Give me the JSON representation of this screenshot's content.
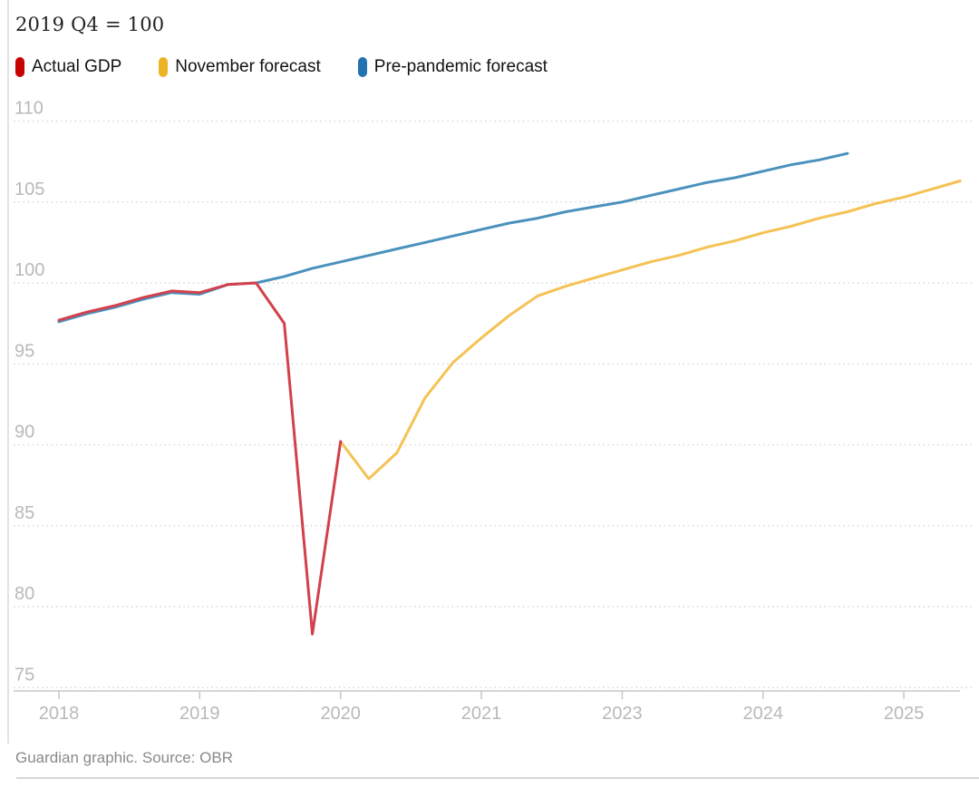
{
  "chart_data": {
    "type": "line",
    "title": "2019 Q4 = 100",
    "x_unit": "quarters since 2018 Q1",
    "ylim": [
      75,
      110
    ],
    "y_ticks": [
      110,
      105,
      100,
      95,
      90,
      85,
      80,
      75
    ],
    "x_ticks": [
      {
        "position_quarter": 0,
        "label": "2018"
      },
      {
        "position_quarter": 5,
        "label": "2019"
      },
      {
        "position_quarter": 10,
        "label": "2020"
      },
      {
        "position_quarter": 15,
        "label": "2021"
      },
      {
        "position_quarter": 20,
        "label": "2023"
      },
      {
        "position_quarter": 25,
        "label": "2024"
      },
      {
        "position_quarter": 30,
        "label": "2025"
      }
    ],
    "grid": "dotted horizontal",
    "legend_position": "top-left",
    "style": {
      "grid_color": "#d9d9d9",
      "axis_color": "#c7c7c7",
      "tick_label_color": "#b9b9b9"
    },
    "series": [
      {
        "name": "Actual GDP",
        "color": "#d2414b",
        "swatch": "#c70000",
        "start_quarter": 0,
        "values": [
          97.7,
          98.2,
          98.6,
          99.1,
          99.5,
          99.4,
          99.9,
          100,
          97.5,
          78.3,
          90.2
        ]
      },
      {
        "name": "November forecast",
        "color": "#f5c254",
        "swatch": "#edb327",
        "start_quarter": 10,
        "values": [
          90.2,
          87.9,
          89.5,
          92.9,
          95.1,
          96.6,
          98,
          99.2,
          99.8,
          100.3,
          100.8,
          101.3,
          101.7,
          102.2,
          102.6,
          103.1,
          103.5,
          104,
          104.4,
          104.9,
          105.3,
          105.8,
          106.3
        ]
      },
      {
        "name": "Pre-pandemic forecast",
        "color": "#4a91bd",
        "swatch": "#2272b2",
        "start_quarter": 0,
        "values": [
          97.6,
          98.1,
          98.5,
          99,
          99.4,
          99.3,
          99.9,
          100,
          100.4,
          100.9,
          101.3,
          101.7,
          102.1,
          102.5,
          102.9,
          103.3,
          103.7,
          104,
          104.4,
          104.7,
          105,
          105.4,
          105.8,
          106.2,
          106.5,
          106.9,
          107.3,
          107.6,
          108
        ]
      }
    ]
  },
  "footer": {
    "text": "Guardian graphic. Source: OBR"
  }
}
